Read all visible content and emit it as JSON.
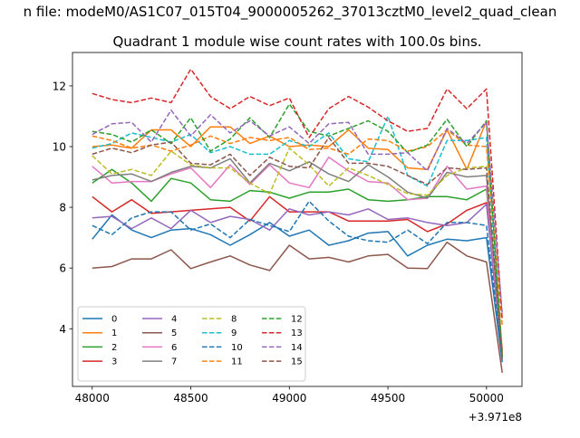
{
  "suptitle": "n file: modeM0/AS1C07_015T04_9000005262_37013cztM0_level2_quad_clean",
  "chart_data": {
    "type": "line",
    "title": "Quadrant 1 module wise count rates with 100.0s bins.",
    "xlabel": "",
    "ylabel": "",
    "offset_text": "+3.971e8",
    "xlim": [
      47900,
      50180
    ],
    "ylim": [
      2.1,
      13.1
    ],
    "x_ticks": [
      48000,
      48500,
      49000,
      49500,
      50000
    ],
    "y_ticks": [
      4,
      6,
      8,
      10,
      12
    ],
    "grid": false,
    "legend_position": "lower-left",
    "legend_columns": 4,
    "x": [
      48000,
      48100,
      48200,
      48300,
      48400,
      48500,
      48600,
      48700,
      48800,
      48900,
      49000,
      49100,
      49200,
      49300,
      49400,
      49500,
      49600,
      49700,
      49800,
      49900,
      50000,
      50080
    ],
    "series": [
      {
        "name": "0",
        "color": "#1f77b4",
        "dash": "solid",
        "values": [
          6.95,
          7.75,
          7.25,
          7.0,
          7.25,
          7.3,
          7.1,
          6.75,
          7.1,
          7.5,
          7.05,
          7.25,
          6.75,
          6.9,
          7.15,
          7.2,
          6.4,
          6.75,
          6.95,
          6.9,
          7.0,
          2.9
        ]
      },
      {
        "name": "1",
        "color": "#ff7f0e",
        "dash": "solid",
        "values": [
          10.0,
          10.05,
          9.95,
          10.55,
          10.55,
          10.0,
          10.65,
          10.65,
          10.1,
          10.35,
          10.0,
          10.05,
          10.0,
          10.55,
          9.95,
          9.9,
          9.3,
          9.25,
          10.55,
          9.25,
          10.85,
          3.2
        ]
      },
      {
        "name": "2",
        "color": "#2ca02c",
        "dash": "solid",
        "values": [
          8.8,
          9.25,
          8.8,
          8.2,
          8.95,
          8.8,
          8.25,
          8.2,
          8.55,
          8.5,
          8.3,
          8.5,
          8.5,
          8.6,
          8.25,
          8.2,
          8.25,
          8.35,
          8.35,
          8.25,
          8.6,
          3.1
        ]
      },
      {
        "name": "3",
        "color": "#d62728",
        "dash": "solid",
        "values": [
          8.35,
          7.85,
          8.25,
          7.8,
          7.85,
          7.9,
          7.95,
          8.0,
          7.55,
          8.35,
          7.85,
          7.85,
          7.85,
          7.55,
          7.55,
          7.55,
          7.6,
          7.2,
          7.45,
          7.9,
          8.15,
          3.3
        ]
      },
      {
        "name": "4",
        "color": "#9467bd",
        "dash": "solid",
        "values": [
          7.65,
          7.7,
          7.3,
          7.65,
          7.3,
          7.9,
          7.5,
          7.7,
          7.6,
          7.25,
          7.95,
          7.75,
          7.85,
          7.75,
          7.95,
          7.6,
          7.65,
          7.5,
          7.4,
          7.5,
          8.1,
          3.05
        ]
      },
      {
        "name": "5",
        "color": "#8c564b",
        "dash": "solid",
        "values": [
          6.0,
          6.05,
          6.3,
          6.3,
          6.6,
          5.98,
          6.2,
          6.4,
          6.1,
          5.92,
          6.75,
          6.3,
          6.35,
          6.2,
          6.4,
          6.45,
          6.0,
          5.98,
          6.85,
          6.4,
          6.2,
          2.55
        ]
      },
      {
        "name": "6",
        "color": "#e377c2",
        "dash": "solid",
        "values": [
          9.35,
          8.8,
          8.85,
          8.85,
          9.1,
          9.3,
          8.65,
          9.4,
          8.75,
          9.4,
          8.8,
          8.65,
          9.65,
          9.2,
          8.85,
          8.8,
          8.25,
          8.3,
          9.35,
          8.6,
          8.7,
          3.0
        ]
      },
      {
        "name": "7",
        "color": "#7f7f7f",
        "dash": "solid",
        "values": [
          8.9,
          9.05,
          9.1,
          8.85,
          9.15,
          9.35,
          9.3,
          9.6,
          8.8,
          9.45,
          9.2,
          9.5,
          9.1,
          8.85,
          9.4,
          9.0,
          8.5,
          8.3,
          9.15,
          9.0,
          9.05,
          3.2
        ]
      },
      {
        "name": "8",
        "color": "#bcbd22",
        "dash": "dashed",
        "values": [
          9.7,
          9.1,
          9.25,
          9.05,
          9.85,
          9.4,
          9.3,
          9.3,
          8.8,
          8.45,
          9.95,
          9.4,
          8.7,
          9.3,
          9.05,
          8.75,
          8.45,
          8.4,
          9.05,
          9.3,
          9.35,
          3.05
        ]
      },
      {
        "name": "9",
        "color": "#17becf",
        "dash": "dashed",
        "values": [
          9.95,
          10.1,
          10.45,
          10.3,
          10.15,
          10.4,
          9.8,
          10.0,
          9.75,
          9.75,
          10.2,
          10.0,
          10.45,
          9.6,
          9.5,
          11.0,
          9.05,
          8.7,
          10.2,
          10.2,
          10.3,
          3.0
        ]
      },
      {
        "name": "10",
        "color": "#1f77b4",
        "dash": "dashed",
        "values": [
          7.4,
          7.1,
          7.65,
          7.85,
          7.85,
          7.25,
          7.45,
          7.0,
          7.6,
          7.4,
          7.2,
          8.2,
          7.55,
          7.05,
          6.9,
          6.85,
          7.25,
          6.8,
          7.5,
          7.5,
          7.4,
          3.05
        ]
      },
      {
        "name": "11",
        "color": "#ff7f0e",
        "dash": "dashed",
        "values": [
          10.35,
          10.2,
          9.95,
          10.05,
          9.85,
          10.05,
          10.35,
          10.1,
          10.3,
          10.2,
          10.3,
          9.9,
          9.95,
          9.75,
          10.25,
          10.2,
          9.85,
          10.0,
          10.55,
          10.05,
          10.0,
          4.1
        ]
      },
      {
        "name": "12",
        "color": "#2ca02c",
        "dash": "dashed",
        "values": [
          10.5,
          10.4,
          10.15,
          10.55,
          10.1,
          10.95,
          9.85,
          10.25,
          10.95,
          10.3,
          11.4,
          10.5,
          10.35,
          10.6,
          10.85,
          10.5,
          9.8,
          10.05,
          10.9,
          10.0,
          10.85,
          3.05
        ]
      },
      {
        "name": "13",
        "color": "#d62728",
        "dash": "dashed",
        "values": [
          11.75,
          11.55,
          11.45,
          11.6,
          11.45,
          12.55,
          11.65,
          11.25,
          11.65,
          11.35,
          11.6,
          10.3,
          11.25,
          11.65,
          11.3,
          10.85,
          10.5,
          10.6,
          11.9,
          11.25,
          11.9,
          4.3
        ]
      },
      {
        "name": "14",
        "color": "#9467bd",
        "dash": "dashed",
        "values": [
          10.4,
          10.75,
          10.8,
          10.15,
          11.2,
          10.35,
          11.05,
          10.45,
          10.85,
          10.35,
          10.65,
          10.1,
          10.75,
          10.8,
          9.75,
          9.75,
          9.8,
          9.2,
          10.6,
          10.1,
          10.8,
          4.5
        ]
      },
      {
        "name": "15",
        "color": "#8c564b",
        "dash": "dashed",
        "values": [
          9.75,
          9.95,
          9.8,
          10.05,
          10.15,
          9.45,
          9.4,
          9.75,
          9.05,
          9.65,
          9.35,
          9.3,
          10.3,
          9.45,
          9.45,
          9.35,
          9.05,
          8.75,
          9.3,
          9.25,
          9.3,
          3.0
        ]
      }
    ]
  }
}
